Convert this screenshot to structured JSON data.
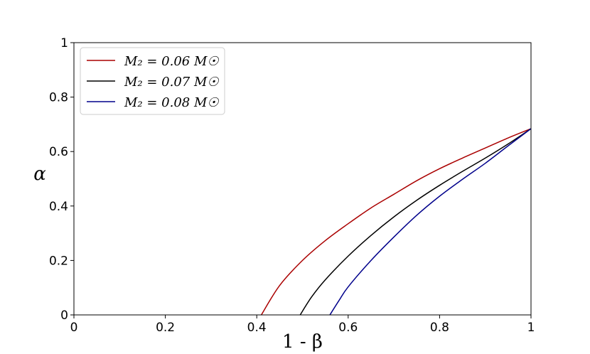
{
  "chart_data": {
    "type": "line",
    "xlabel": "1 - β",
    "ylabel": "α",
    "xlim": [
      0,
      1
    ],
    "ylim": [
      0,
      1
    ],
    "xticks": [
      "0",
      "0.2",
      "0.4",
      "0.6",
      "0.8",
      "1"
    ],
    "yticks": [
      "0",
      "0.2",
      "0.4",
      "0.6",
      "0.8",
      "1"
    ],
    "grid": false,
    "legend": "top-left",
    "series": [
      {
        "name": "M₂ = 0.06 M☉",
        "color": "#aa0000",
        "x": [
          0.41,
          0.45,
          0.5,
          0.55,
          0.6,
          0.65,
          0.7,
          0.75,
          0.8,
          0.85,
          0.9,
          0.95,
          1.0
        ],
        "y": [
          0.0,
          0.108,
          0.2,
          0.273,
          0.335,
          0.393,
          0.443,
          0.493,
          0.537,
          0.576,
          0.613,
          0.65,
          0.684
        ]
      },
      {
        "name": "M₂ = 0.07 M☉",
        "color": "#000000",
        "x": [
          0.495,
          0.52,
          0.55,
          0.6,
          0.65,
          0.7,
          0.75,
          0.8,
          0.85,
          0.9,
          0.95,
          1.0
        ],
        "y": [
          0.0,
          0.066,
          0.129,
          0.216,
          0.292,
          0.36,
          0.421,
          0.476,
          0.527,
          0.576,
          0.628,
          0.684
        ]
      },
      {
        "name": "M₂ = 0.08 M☉",
        "color": "#00008b",
        "x": [
          0.56,
          0.58,
          0.6,
          0.65,
          0.7,
          0.75,
          0.8,
          0.85,
          0.9,
          0.95,
          1.0
        ],
        "y": [
          0.0,
          0.053,
          0.103,
          0.2,
          0.286,
          0.366,
          0.436,
          0.498,
          0.557,
          0.621,
          0.684
        ]
      }
    ]
  }
}
